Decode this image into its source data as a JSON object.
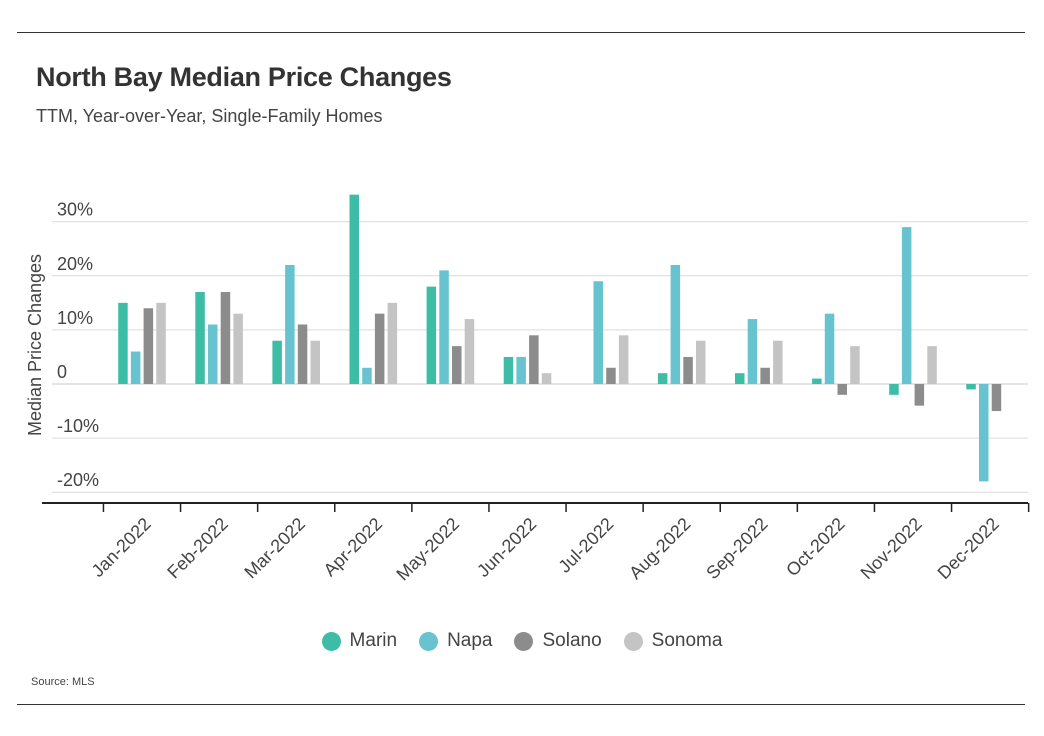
{
  "title": "North Bay Median Price Changes",
  "subtitle": "TTM, Year-over-Year, Single-Family Homes",
  "source": "Source: MLS",
  "chart_data": {
    "type": "bar",
    "title": "North Bay Median Price Changes",
    "subtitle": "TTM, Year-over-Year, Single-Family Homes",
    "xlabel": "",
    "ylabel": "Median Price Changes",
    "ylim": [
      -22,
      32
    ],
    "yticks": [
      30,
      20,
      10,
      0,
      -10,
      -20
    ],
    "ytick_labels": [
      "30%",
      "20%",
      "10%",
      "0",
      "-10%",
      "-20%"
    ],
    "grid": true,
    "legend_position": "bottom",
    "categories": [
      "Jan-2022",
      "Feb-2022",
      "Mar-2022",
      "Apr-2022",
      "May-2022",
      "Jun-2022",
      "Jul-2022",
      "Aug-2022",
      "Sep-2022",
      "Oct-2022",
      "Nov-2022",
      "Dec-2022"
    ],
    "series": [
      {
        "name": "Marin",
        "color": "#3dbda5",
        "values": [
          15,
          17,
          8,
          35,
          18,
          5,
          0,
          2,
          2,
          1,
          -2,
          -1
        ]
      },
      {
        "name": "Napa",
        "color": "#66c3cf",
        "values": [
          6,
          11,
          22,
          3,
          21,
          5,
          19,
          22,
          12,
          13,
          29,
          -18
        ]
      },
      {
        "name": "Solano",
        "color": "#8c8c8c",
        "values": [
          14,
          17,
          11,
          13,
          7,
          9,
          3,
          5,
          3,
          -2,
          -4,
          -5
        ]
      },
      {
        "name": "Sonoma",
        "color": "#c4c4c4",
        "values": [
          15,
          13,
          8,
          15,
          12,
          2,
          9,
          8,
          8,
          7,
          7,
          0
        ]
      }
    ]
  }
}
